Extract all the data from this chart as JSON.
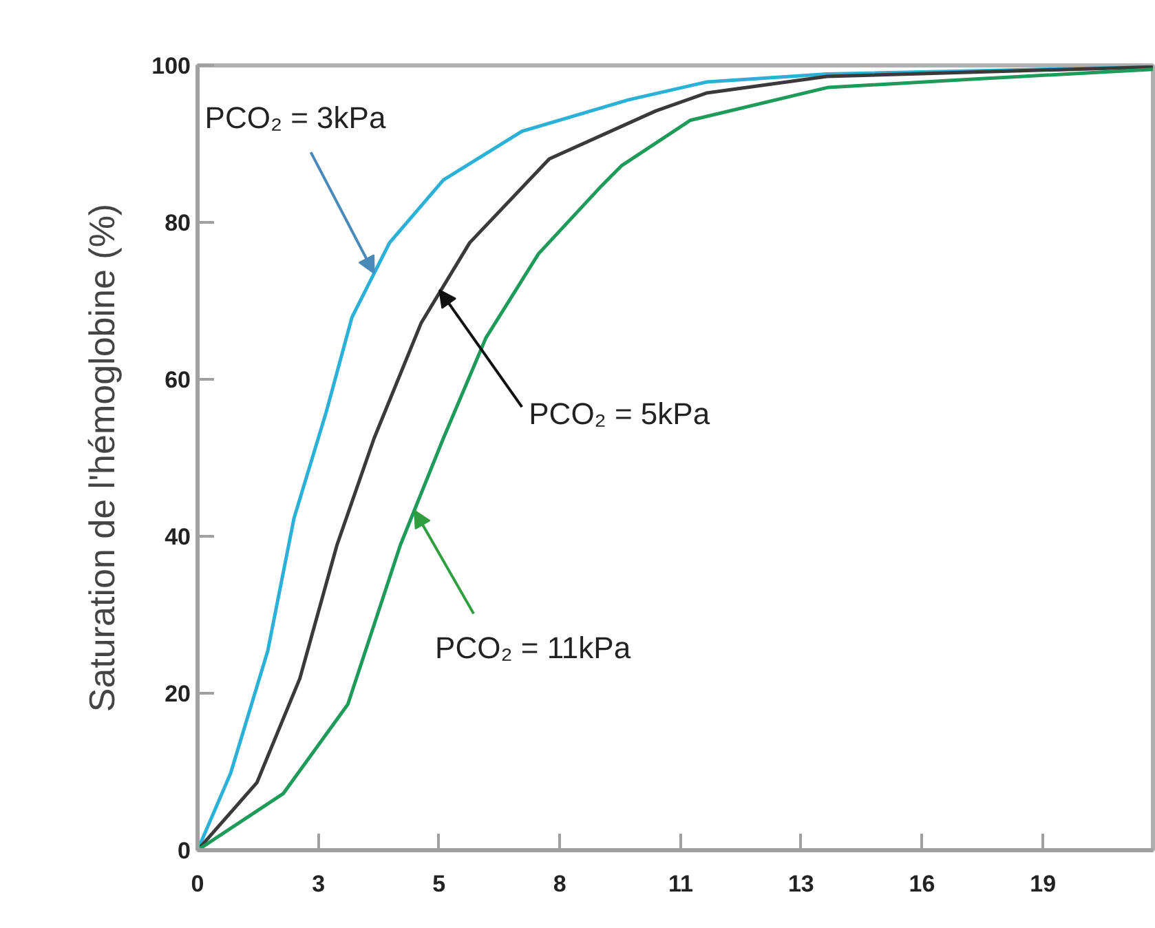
{
  "chart_data": {
    "type": "line",
    "ylabel": "Saturation de l'hémoglobine (%)",
    "xlim": [
      0,
      21.1
    ],
    "ylim": [
      0,
      100
    ],
    "xticks": [
      0,
      {
        "value": 2.67,
        "label": "3"
      },
      {
        "value": 5.33,
        "label": "5"
      },
      8,
      {
        "value": 10.67,
        "label": "11"
      },
      {
        "value": 13.33,
        "label": "13"
      },
      16,
      {
        "value": 18.67,
        "label": "19"
      }
    ],
    "yticks": [
      0,
      20,
      40,
      60,
      80,
      100
    ],
    "grid": false,
    "marker": "none",
    "line_style": "solid",
    "series": [
      {
        "color": "#2bb0d8",
        "x": [
          0,
          0.73,
          1.55,
          2.13,
          2.84,
          3.41,
          4.24,
          5.43,
          7.16,
          9.51,
          11.25,
          13.9,
          21.1
        ],
        "values": [
          0,
          9.8,
          25.4,
          42.3,
          55.8,
          67.9,
          77.4,
          85.4,
          91.6,
          95.6,
          97.9,
          98.9,
          99.8
        ]
      },
      {
        "color": "#3a3a3a",
        "x": [
          0,
          1.31,
          2.26,
          3.08,
          3.9,
          4.94,
          6.01,
          7.77,
          10.12,
          11.25,
          13.9,
          21.1
        ],
        "values": [
          0,
          8.6,
          21.9,
          38.9,
          52.5,
          67.2,
          77.4,
          88.1,
          94.2,
          96.5,
          98.6,
          99.8
        ]
      },
      {
        "color": "#1e9a5a",
        "x": [
          0,
          1.89,
          3.32,
          4.48,
          5.43,
          6.37,
          7.53,
          8.93,
          9.36,
          10.88,
          13.93,
          16.98,
          21.1
        ],
        "values": [
          0,
          7.2,
          18.6,
          38.9,
          52.5,
          65.3,
          76.0,
          84.7,
          87.2,
          93.0,
          97.2,
          98.2,
          99.5
        ]
      }
    ],
    "annotations": [
      {
        "text": "PCO₂ = 3kPa",
        "x": 3.9,
        "y": 73.5
      },
      {
        "text": "PCO₂ = 5kPa",
        "x": 5.34,
        "y": 71.4
      },
      {
        "text": "PCO₂ = 11kPa",
        "x": 4.79,
        "y": 43.3
      }
    ]
  }
}
